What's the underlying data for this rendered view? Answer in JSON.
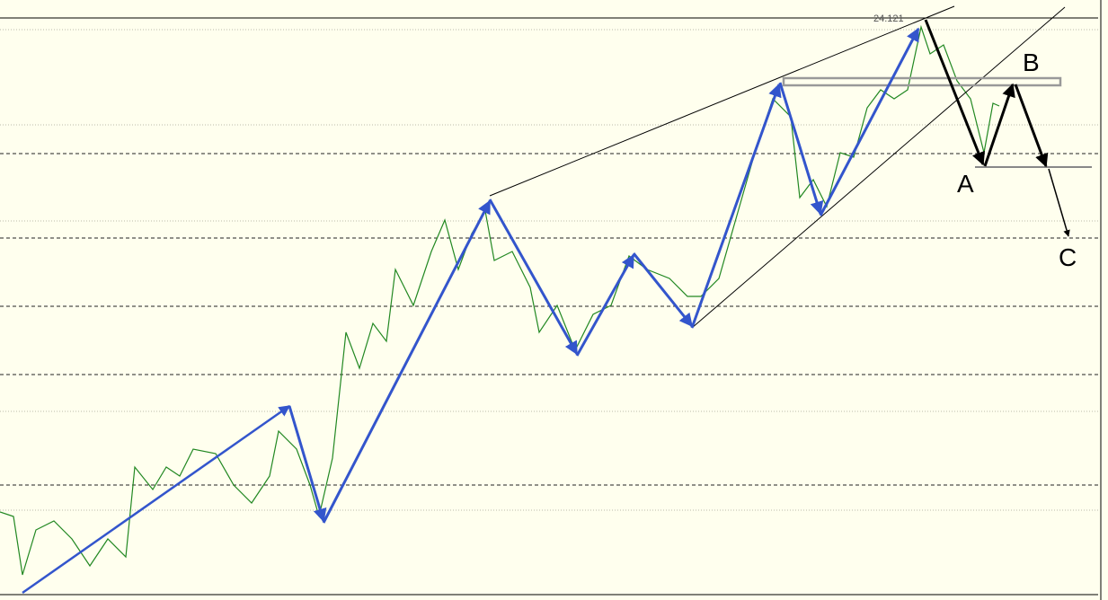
{
  "annotations": {
    "price": "24.121",
    "points": [
      "A",
      "B",
      "C"
    ]
  }
}
